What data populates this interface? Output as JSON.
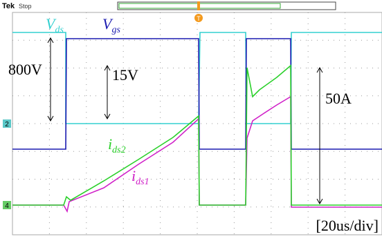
{
  "header": {
    "brand": "Tek",
    "status": "Stop"
  },
  "labels": {
    "vds": {
      "main": "V",
      "sub": "ds"
    },
    "vgs": {
      "main": "V",
      "sub": "gs"
    },
    "ids2": {
      "main": "i",
      "sub": "ds2"
    },
    "ids1": {
      "main": "i",
      "sub": "ds1"
    }
  },
  "annotations": {
    "voltage_ds": "800V",
    "voltage_gs": "15V",
    "current": "50A"
  },
  "channel_markers": [
    "2",
    "4"
  ],
  "trigger": "T",
  "timebase": "[20us/div]"
}
